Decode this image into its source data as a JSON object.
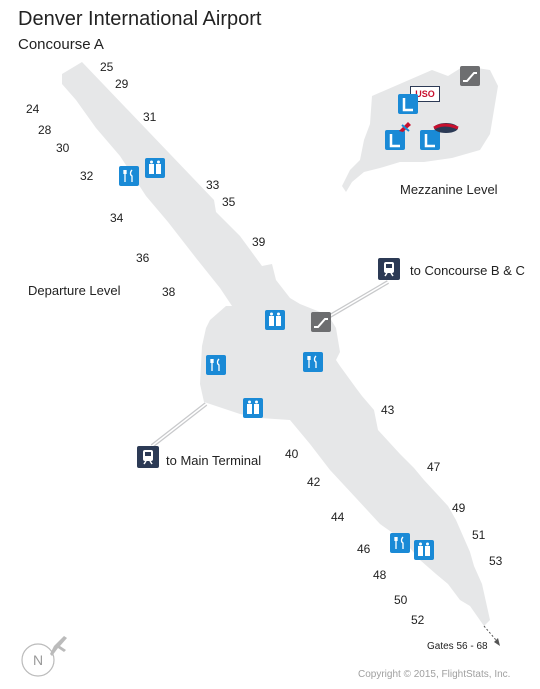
{
  "header": {
    "title": "Denver International Airport",
    "subtitle": "Concourse A"
  },
  "levels": {
    "departure": "Departure Level",
    "mezzanine": "Mezzanine Level"
  },
  "connections": {
    "concourse_bc": "to Concourse B & C",
    "main_terminal": "to Main Terminal",
    "gates_beyond": "Gates 56 - 68"
  },
  "gates": [
    "25",
    "29",
    "24",
    "28",
    "31",
    "30",
    "32",
    "33",
    "35",
    "34",
    "39",
    "36",
    "38",
    "43",
    "40",
    "42",
    "47",
    "44",
    "49",
    "51",
    "46",
    "53",
    "48",
    "50",
    "52"
  ],
  "usd_sign": "USO",
  "compass": "N",
  "copyright": "Copyright © 2015, FlightStats, Inc.",
  "colors": {
    "floor": "#e6e7e8",
    "amenity_blue": "#1a8ad6",
    "train_navy": "#2c3a55",
    "escalator_gray": "#6d6e70"
  }
}
